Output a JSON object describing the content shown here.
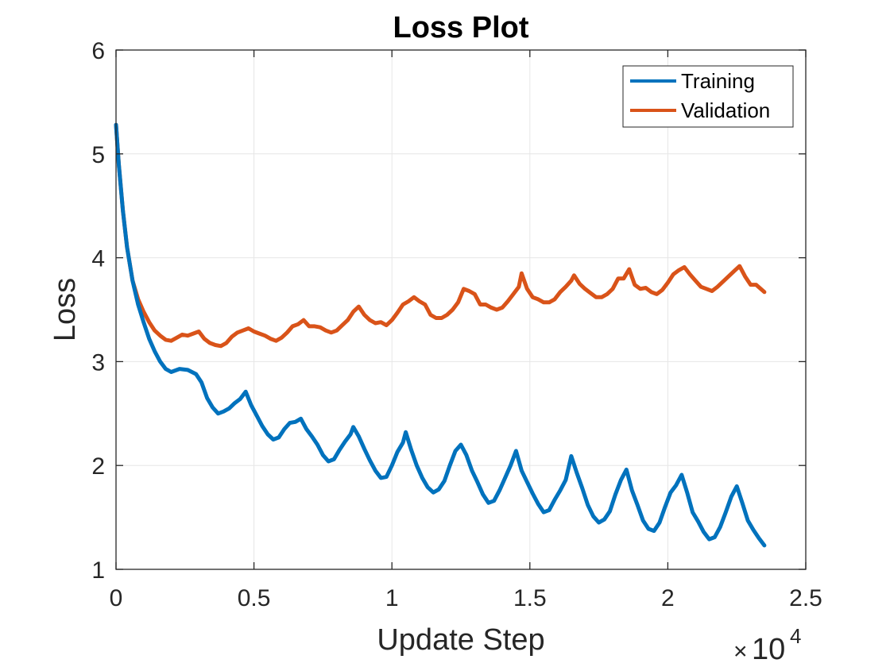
{
  "chart_data": {
    "type": "line",
    "title": "Loss Plot",
    "xlabel": "Update Step",
    "ylabel": "Loss",
    "x_multiplier_base": "10",
    "x_multiplier_exp": "4",
    "xlim": [
      0,
      25000
    ],
    "ylim": [
      1,
      6
    ],
    "xticks": [
      0,
      5000,
      10000,
      15000,
      20000,
      25000
    ],
    "xtick_labels": [
      "0",
      "0.5",
      "1",
      "1.5",
      "2",
      "2.5"
    ],
    "yticks": [
      1,
      2,
      3,
      4,
      5,
      6
    ],
    "ytick_labels": [
      "1",
      "2",
      "3",
      "4",
      "5",
      "6"
    ],
    "grid": true,
    "legend_position": "top-right",
    "series": [
      {
        "name": "Training",
        "color": "#0072BD",
        "points": [
          [
            0,
            5.28
          ],
          [
            100,
            4.9
          ],
          [
            250,
            4.45
          ],
          [
            400,
            4.1
          ],
          [
            600,
            3.78
          ],
          [
            800,
            3.55
          ],
          [
            1000,
            3.38
          ],
          [
            1200,
            3.22
          ],
          [
            1400,
            3.1
          ],
          [
            1600,
            3.0
          ],
          [
            1800,
            2.93
          ],
          [
            2000,
            2.9
          ],
          [
            2300,
            2.93
          ],
          [
            2600,
            2.92
          ],
          [
            2900,
            2.88
          ],
          [
            3100,
            2.8
          ],
          [
            3300,
            2.65
          ],
          [
            3500,
            2.56
          ],
          [
            3700,
            2.5
          ],
          [
            3900,
            2.52
          ],
          [
            4100,
            2.55
          ],
          [
            4300,
            2.6
          ],
          [
            4500,
            2.64
          ],
          [
            4700,
            2.71
          ],
          [
            4900,
            2.58
          ],
          [
            5100,
            2.48
          ],
          [
            5300,
            2.38
          ],
          [
            5500,
            2.3
          ],
          [
            5700,
            2.25
          ],
          [
            5900,
            2.27
          ],
          [
            6100,
            2.35
          ],
          [
            6300,
            2.41
          ],
          [
            6500,
            2.42
          ],
          [
            6700,
            2.45
          ],
          [
            6900,
            2.35
          ],
          [
            7100,
            2.28
          ],
          [
            7300,
            2.2
          ],
          [
            7500,
            2.1
          ],
          [
            7700,
            2.04
          ],
          [
            7900,
            2.06
          ],
          [
            8100,
            2.15
          ],
          [
            8300,
            2.23
          ],
          [
            8500,
            2.3
          ],
          [
            8600,
            2.37
          ],
          [
            8800,
            2.28
          ],
          [
            9000,
            2.16
          ],
          [
            9200,
            2.05
          ],
          [
            9400,
            1.95
          ],
          [
            9600,
            1.88
          ],
          [
            9800,
            1.89
          ],
          [
            10000,
            2.0
          ],
          [
            10200,
            2.13
          ],
          [
            10400,
            2.22
          ],
          [
            10500,
            2.32
          ],
          [
            10700,
            2.15
          ],
          [
            10900,
            2.0
          ],
          [
            11100,
            1.88
          ],
          [
            11300,
            1.79
          ],
          [
            11500,
            1.74
          ],
          [
            11700,
            1.77
          ],
          [
            11900,
            1.85
          ],
          [
            12100,
            2.0
          ],
          [
            12300,
            2.14
          ],
          [
            12500,
            2.2
          ],
          [
            12700,
            2.1
          ],
          [
            12900,
            1.95
          ],
          [
            13100,
            1.84
          ],
          [
            13300,
            1.72
          ],
          [
            13500,
            1.64
          ],
          [
            13700,
            1.66
          ],
          [
            13900,
            1.76
          ],
          [
            14100,
            1.88
          ],
          [
            14300,
            2.0
          ],
          [
            14500,
            2.14
          ],
          [
            14700,
            1.95
          ],
          [
            14900,
            1.84
          ],
          [
            15100,
            1.73
          ],
          [
            15300,
            1.63
          ],
          [
            15500,
            1.55
          ],
          [
            15700,
            1.57
          ],
          [
            15900,
            1.67
          ],
          [
            16100,
            1.76
          ],
          [
            16300,
            1.86
          ],
          [
            16500,
            2.09
          ],
          [
            16700,
            1.93
          ],
          [
            16900,
            1.78
          ],
          [
            17100,
            1.62
          ],
          [
            17300,
            1.51
          ],
          [
            17500,
            1.45
          ],
          [
            17700,
            1.48
          ],
          [
            17900,
            1.56
          ],
          [
            18100,
            1.72
          ],
          [
            18300,
            1.86
          ],
          [
            18500,
            1.96
          ],
          [
            18700,
            1.76
          ],
          [
            18900,
            1.62
          ],
          [
            19100,
            1.47
          ],
          [
            19300,
            1.39
          ],
          [
            19500,
            1.37
          ],
          [
            19700,
            1.45
          ],
          [
            19900,
            1.6
          ],
          [
            20100,
            1.74
          ],
          [
            20300,
            1.81
          ],
          [
            20500,
            1.91
          ],
          [
            20700,
            1.74
          ],
          [
            20900,
            1.55
          ],
          [
            21100,
            1.46
          ],
          [
            21300,
            1.36
          ],
          [
            21500,
            1.29
          ],
          [
            21700,
            1.31
          ],
          [
            21900,
            1.41
          ],
          [
            22100,
            1.55
          ],
          [
            22300,
            1.7
          ],
          [
            22500,
            1.8
          ],
          [
            22700,
            1.64
          ],
          [
            22900,
            1.47
          ],
          [
            23100,
            1.38
          ],
          [
            23300,
            1.3
          ],
          [
            23500,
            1.23
          ]
        ]
      },
      {
        "name": "Validation",
        "color": "#D95319",
        "points": [
          [
            0,
            5.28
          ],
          [
            100,
            4.9
          ],
          [
            250,
            4.45
          ],
          [
            400,
            4.1
          ],
          [
            600,
            3.78
          ],
          [
            800,
            3.6
          ],
          [
            1000,
            3.48
          ],
          [
            1200,
            3.38
          ],
          [
            1400,
            3.3
          ],
          [
            1600,
            3.25
          ],
          [
            1800,
            3.21
          ],
          [
            2000,
            3.2
          ],
          [
            2200,
            3.23
          ],
          [
            2400,
            3.26
          ],
          [
            2600,
            3.25
          ],
          [
            2800,
            3.27
          ],
          [
            3000,
            3.29
          ],
          [
            3200,
            3.22
          ],
          [
            3400,
            3.18
          ],
          [
            3600,
            3.16
          ],
          [
            3800,
            3.15
          ],
          [
            4000,
            3.18
          ],
          [
            4200,
            3.24
          ],
          [
            4400,
            3.28
          ],
          [
            4600,
            3.3
          ],
          [
            4800,
            3.32
          ],
          [
            5000,
            3.29
          ],
          [
            5200,
            3.27
          ],
          [
            5400,
            3.25
          ],
          [
            5600,
            3.22
          ],
          [
            5800,
            3.2
          ],
          [
            6000,
            3.23
          ],
          [
            6200,
            3.28
          ],
          [
            6400,
            3.34
          ],
          [
            6600,
            3.36
          ],
          [
            6800,
            3.4
          ],
          [
            7000,
            3.34
          ],
          [
            7200,
            3.34
          ],
          [
            7400,
            3.33
          ],
          [
            7600,
            3.3
          ],
          [
            7800,
            3.28
          ],
          [
            8000,
            3.3
          ],
          [
            8200,
            3.35
          ],
          [
            8400,
            3.4
          ],
          [
            8600,
            3.48
          ],
          [
            8800,
            3.53
          ],
          [
            9000,
            3.45
          ],
          [
            9200,
            3.4
          ],
          [
            9400,
            3.37
          ],
          [
            9600,
            3.38
          ],
          [
            9800,
            3.35
          ],
          [
            10000,
            3.4
          ],
          [
            10200,
            3.47
          ],
          [
            10400,
            3.55
          ],
          [
            10600,
            3.58
          ],
          [
            10800,
            3.62
          ],
          [
            11000,
            3.58
          ],
          [
            11200,
            3.55
          ],
          [
            11400,
            3.45
          ],
          [
            11600,
            3.42
          ],
          [
            11800,
            3.42
          ],
          [
            12000,
            3.45
          ],
          [
            12200,
            3.5
          ],
          [
            12400,
            3.57
          ],
          [
            12600,
            3.7
          ],
          [
            12800,
            3.68
          ],
          [
            13000,
            3.65
          ],
          [
            13200,
            3.55
          ],
          [
            13400,
            3.55
          ],
          [
            13600,
            3.52
          ],
          [
            13800,
            3.5
          ],
          [
            14000,
            3.52
          ],
          [
            14200,
            3.58
          ],
          [
            14400,
            3.65
          ],
          [
            14600,
            3.72
          ],
          [
            14700,
            3.85
          ],
          [
            14900,
            3.7
          ],
          [
            15100,
            3.62
          ],
          [
            15300,
            3.6
          ],
          [
            15500,
            3.57
          ],
          [
            15700,
            3.57
          ],
          [
            15900,
            3.6
          ],
          [
            16100,
            3.67
          ],
          [
            16300,
            3.72
          ],
          [
            16500,
            3.78
          ],
          [
            16600,
            3.83
          ],
          [
            16800,
            3.75
          ],
          [
            17000,
            3.7
          ],
          [
            17200,
            3.66
          ],
          [
            17400,
            3.62
          ],
          [
            17600,
            3.62
          ],
          [
            17800,
            3.65
          ],
          [
            18000,
            3.7
          ],
          [
            18200,
            3.8
          ],
          [
            18400,
            3.8
          ],
          [
            18600,
            3.89
          ],
          [
            18800,
            3.74
          ],
          [
            19000,
            3.7
          ],
          [
            19200,
            3.71
          ],
          [
            19400,
            3.67
          ],
          [
            19600,
            3.65
          ],
          [
            19800,
            3.69
          ],
          [
            20000,
            3.76
          ],
          [
            20200,
            3.84
          ],
          [
            20400,
            3.88
          ],
          [
            20600,
            3.91
          ],
          [
            20800,
            3.84
          ],
          [
            21000,
            3.78
          ],
          [
            21200,
            3.72
          ],
          [
            21400,
            3.7
          ],
          [
            21600,
            3.68
          ],
          [
            21800,
            3.72
          ],
          [
            22000,
            3.77
          ],
          [
            22200,
            3.82
          ],
          [
            22400,
            3.87
          ],
          [
            22600,
            3.92
          ],
          [
            22800,
            3.82
          ],
          [
            23000,
            3.74
          ],
          [
            23200,
            3.74
          ],
          [
            23500,
            3.67
          ]
        ]
      }
    ]
  }
}
